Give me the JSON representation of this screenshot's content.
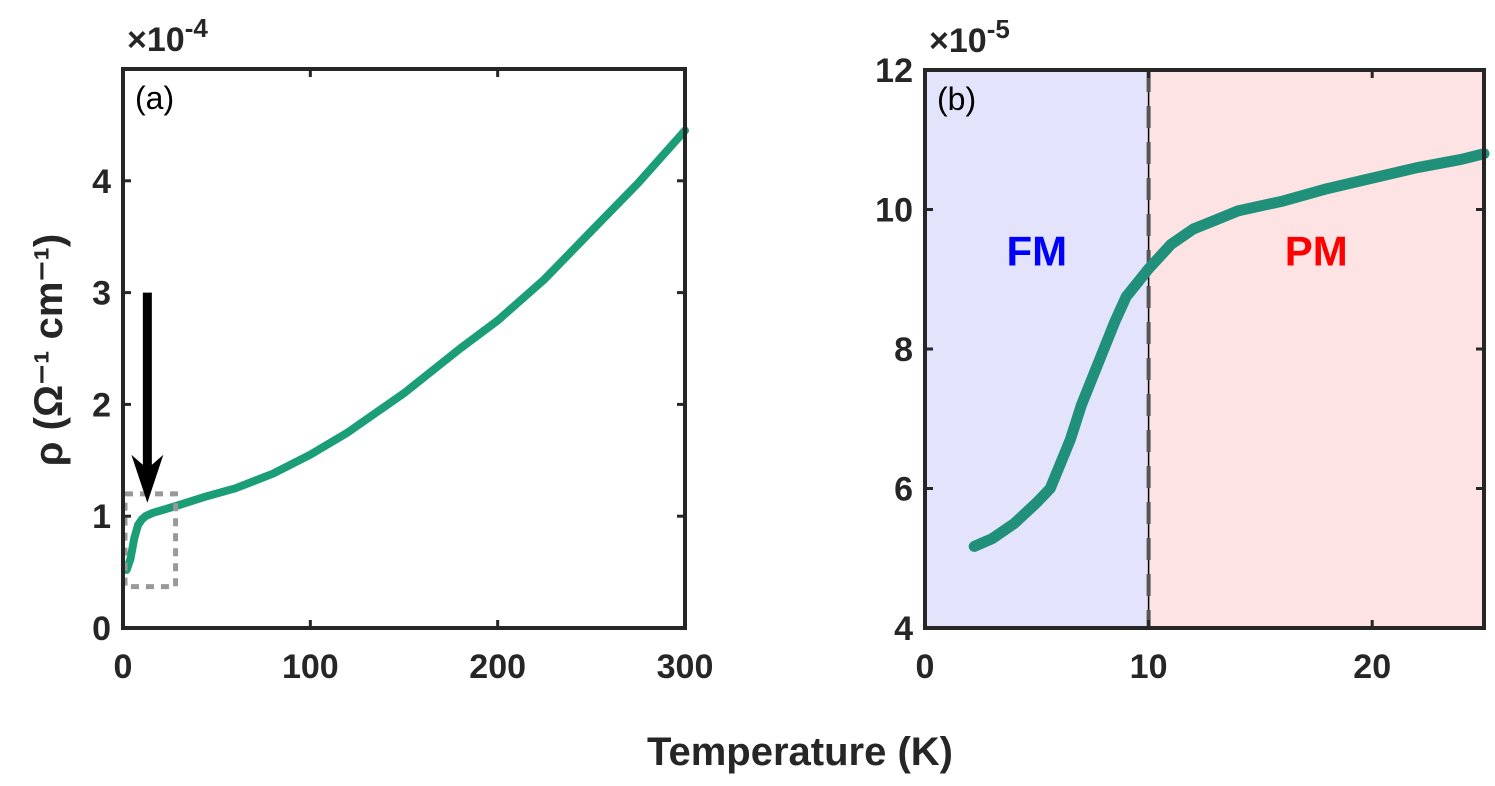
{
  "chart_data": [
    {
      "type": "line",
      "panel_label": "(a)",
      "xlabel": "Temperature (K)",
      "ylabel": "ρ (Ω⁻¹ cm⁻¹)",
      "y_multiplier": "×10",
      "y_exponent": "-4",
      "xlim": [
        0,
        300
      ],
      "ylim": [
        0,
        5
      ],
      "xticks": [
        0,
        100,
        200,
        300
      ],
      "yticks": [
        0,
        1,
        2,
        3,
        4
      ],
      "grid": false,
      "line_color": "#1b9e77",
      "series": [
        {
          "x": [
            2,
            4,
            6,
            8,
            10,
            12,
            16,
            20,
            30,
            45,
            60,
            80,
            100,
            120,
            150,
            180,
            200,
            225,
            250,
            275,
            300
          ],
          "y": [
            0.52,
            0.62,
            0.8,
            0.92,
            0.97,
            1.0,
            1.03,
            1.05,
            1.1,
            1.18,
            1.25,
            1.38,
            1.55,
            1.75,
            2.1,
            2.5,
            2.75,
            3.12,
            3.55,
            3.98,
            4.45
          ]
        }
      ],
      "annotations": {
        "arrow": {
          "x": 13,
          "y_from": 3.0,
          "y_to": 1.12
        },
        "dotted_box": {
          "x": [
            0,
            27
          ],
          "y": [
            0.37,
            1.2
          ]
        }
      }
    },
    {
      "type": "line",
      "panel_label": "(b)",
      "y_multiplier": "×10",
      "y_exponent": "-5",
      "xlim": [
        0,
        25
      ],
      "ylim": [
        4,
        12
      ],
      "xticks": [
        0,
        10,
        20
      ],
      "yticks": [
        4,
        6,
        8,
        10,
        12
      ],
      "grid": false,
      "line_color": "#21907a",
      "regions": [
        {
          "label": "FM",
          "x": [
            0,
            10
          ],
          "fill": "#e3e3fc",
          "text_color": "#0000ff"
        },
        {
          "label": "PM",
          "x": [
            10,
            25
          ],
          "fill": "#fde3e3",
          "text_color": "#ff0000"
        }
      ],
      "vline": {
        "x": 10,
        "style": "dashed"
      },
      "series": [
        {
          "x": [
            2.2,
            3,
            4,
            5,
            5.6,
            6.5,
            7,
            7.5,
            8,
            8.5,
            9,
            10,
            11,
            12,
            13,
            14,
            16,
            18,
            20,
            22,
            24,
            25
          ],
          "y": [
            5.17,
            5.28,
            5.5,
            5.8,
            6.0,
            6.7,
            7.2,
            7.6,
            8.0,
            8.4,
            8.75,
            9.15,
            9.5,
            9.72,
            9.85,
            9.98,
            10.12,
            10.3,
            10.45,
            10.6,
            10.72,
            10.8
          ]
        }
      ]
    }
  ]
}
